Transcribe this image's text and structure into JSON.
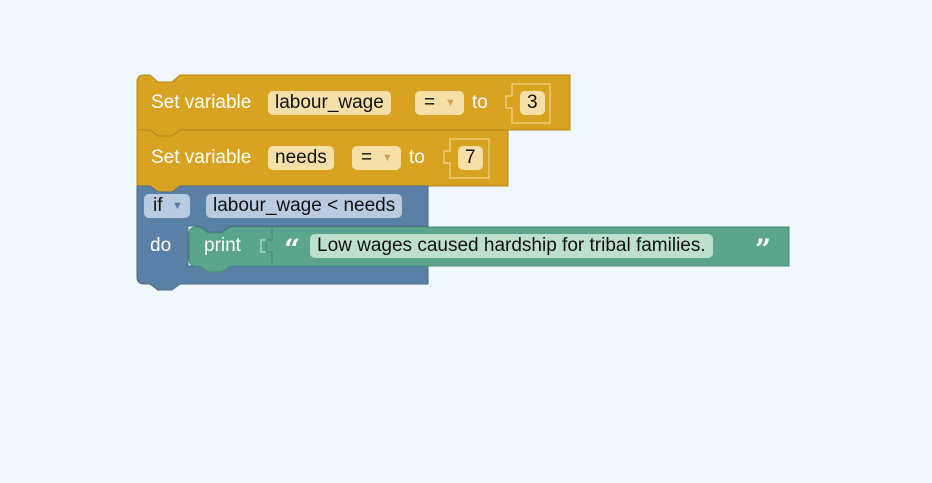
{
  "colors": {
    "workspace_bg": "#f0f7fe",
    "variable_block": "#d9a322",
    "logic_block": "#5b80a6",
    "text_block": "#5ba58c"
  },
  "blocks": {
    "set1": {
      "label": "Set variable",
      "variable": "labour_wage",
      "operator": "=",
      "to_label": "to",
      "value": "3"
    },
    "set2": {
      "label": "Set variable",
      "variable": "needs",
      "operator": "=",
      "to_label": "to",
      "value": "7"
    },
    "if_block": {
      "keyword": "if",
      "condition": "labour_wage < needs",
      "do_label": "do"
    },
    "print_block": {
      "label": "print",
      "open_quote": "“",
      "text": "Low wages caused hardship for tribal families.",
      "close_quote": "”"
    }
  }
}
